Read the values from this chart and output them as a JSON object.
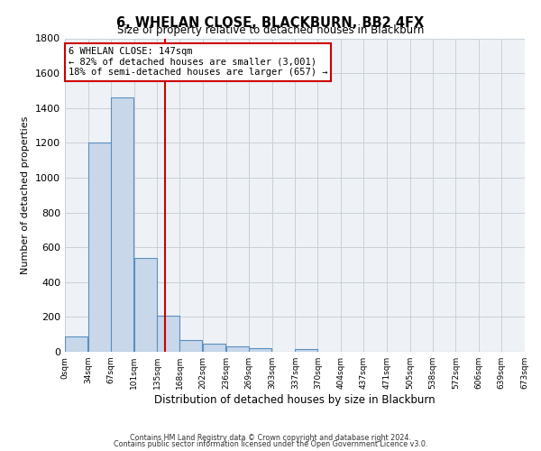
{
  "title": "6, WHELAN CLOSE, BLACKBURN, BB2 4FX",
  "subtitle": "Size of property relative to detached houses in Blackburn",
  "xlabel": "Distribution of detached houses by size in Blackburn",
  "ylabel": "Number of detached properties",
  "bar_left_edges": [
    0,
    34,
    67,
    101,
    135,
    168,
    202,
    236,
    269,
    303,
    337,
    370,
    404,
    437,
    471,
    505,
    538,
    572,
    606,
    639
  ],
  "bar_heights": [
    90,
    1200,
    1460,
    540,
    205,
    65,
    48,
    32,
    22,
    0,
    15,
    0,
    0,
    0,
    0,
    0,
    0,
    0,
    0,
    0
  ],
  "bin_width": 33,
  "bar_facecolor": "#c8d8ea",
  "bar_edgecolor": "#5a8fc0",
  "vline_x": 147,
  "vline_color": "#cc0000",
  "annotation_title": "6 WHELAN CLOSE: 147sqm",
  "annotation_line1": "← 82% of detached houses are smaller (3,001)",
  "annotation_line2": "18% of semi-detached houses are larger (657) →",
  "annotation_box_color": "#cc0000",
  "ylim": [
    0,
    1800
  ],
  "yticks": [
    0,
    200,
    400,
    600,
    800,
    1000,
    1200,
    1400,
    1600,
    1800
  ],
  "xtick_labels": [
    "0sqm",
    "34sqm",
    "67sqm",
    "101sqm",
    "135sqm",
    "168sqm",
    "202sqm",
    "236sqm",
    "269sqm",
    "303sqm",
    "337sqm",
    "370sqm",
    "404sqm",
    "437sqm",
    "471sqm",
    "505sqm",
    "538sqm",
    "572sqm",
    "606sqm",
    "639sqm",
    "673sqm"
  ],
  "xlim_max": 673,
  "grid_color": "#c8d0d8",
  "bg_color": "#eef2f6",
  "footer1": "Contains HM Land Registry data © Crown copyright and database right 2024.",
  "footer2": "Contains public sector information licensed under the Open Government Licence v3.0."
}
